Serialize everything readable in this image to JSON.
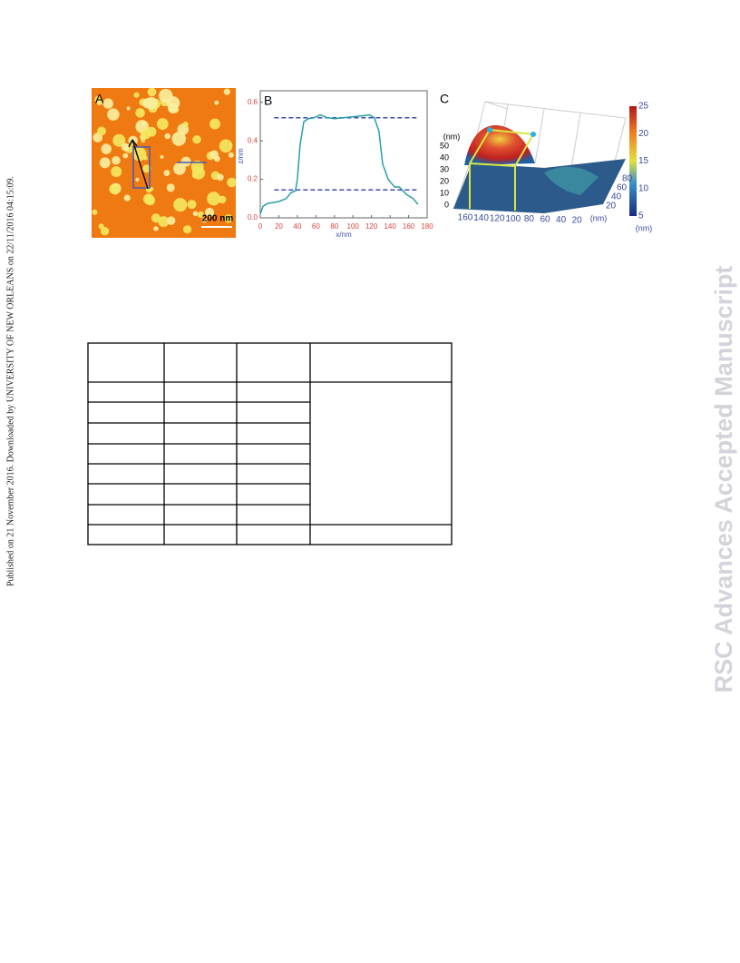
{
  "side_note": "Published on 21 November 2016. Downloaded by UNIVERSITY OF NEW ORLEANS on 22/11/2016 04:15:09.",
  "watermark": "RSC Advances Accepted Manuscript",
  "panel_a": {
    "label": "A",
    "scale_bar": "200 nm"
  },
  "chart_data": {
    "type": "line",
    "label": "B",
    "x_label": "x/nm",
    "y_label": "z/nm",
    "x": [
      0,
      3,
      8,
      15,
      20,
      28,
      33,
      38,
      40,
      43,
      47,
      52,
      58,
      65,
      72,
      80,
      90,
      100,
      110,
      118,
      123,
      128,
      132,
      138,
      145,
      150,
      158,
      165,
      170
    ],
    "series": [
      {
        "color": "#2a9ea6",
        "values": [
          0.02,
          0.06,
          0.075,
          0.08,
          0.085,
          0.1,
          0.13,
          0.14,
          0.2,
          0.38,
          0.5,
          0.515,
          0.52,
          0.535,
          0.52,
          0.515,
          0.52,
          0.525,
          0.53,
          0.535,
          0.52,
          0.45,
          0.28,
          0.2,
          0.16,
          0.16,
          0.12,
          0.1,
          0.07
        ]
      }
    ],
    "reference_lines": [
      0.52,
      0.145
    ],
    "reference_color": "#3a4fb0",
    "xlim": [
      0,
      180
    ],
    "ylim": [
      0,
      0.66
    ],
    "xticks": [
      0,
      20,
      40,
      60,
      80,
      100,
      120,
      140,
      160,
      180
    ],
    "yticks": [
      {
        "value": 0,
        "label": "0.0"
      },
      0.2,
      0.4,
      0.6
    ],
    "tick_color": "#e0403a",
    "axis_label_color": "#3a4fb0"
  },
  "panel_c": {
    "label": "C",
    "z_unit": "(nm)",
    "z_ticks": [
      0,
      10,
      20,
      30,
      40,
      50
    ],
    "x_ticks": [
      160,
      140,
      120,
      100,
      80,
      60,
      40,
      20
    ],
    "x_unit": "(nm)",
    "y_ticks": [
      20,
      40,
      60,
      80
    ],
    "colorbar_lim": [
      5,
      25
    ],
    "colorbar_ticks": [
      5,
      10,
      15,
      20,
      25
    ],
    "colorbar_unit": "(nm)"
  }
}
